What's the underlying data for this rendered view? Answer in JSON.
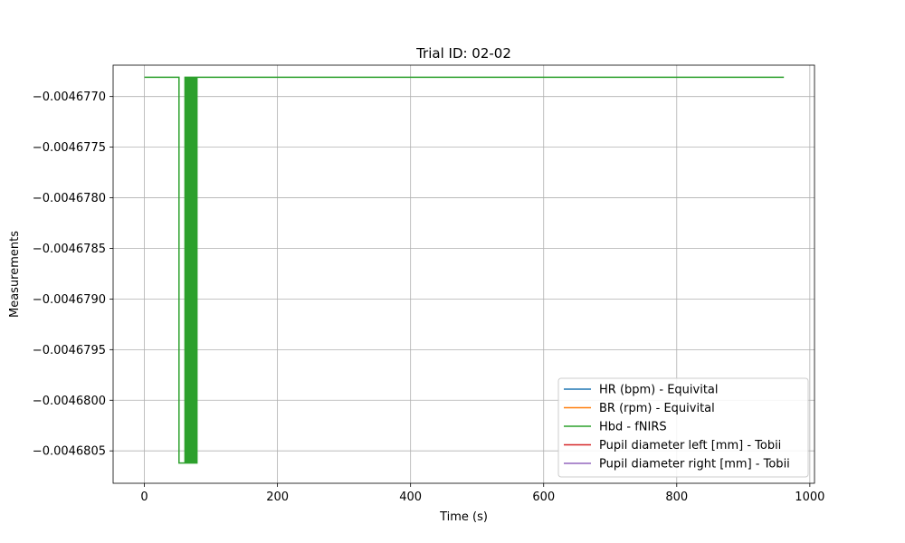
{
  "chart_data": {
    "type": "line",
    "title": "Trial ID: 02-02",
    "xlabel": "Time (s)",
    "ylabel": "Measurements",
    "xlim": [
      -47,
      1007
    ],
    "ylim": [
      -0.00468082,
      -0.00467669
    ],
    "x_ticks": [
      0,
      200,
      400,
      600,
      800,
      1000
    ],
    "x_tick_labels": [
      "0",
      "200",
      "400",
      "600",
      "800",
      "1000"
    ],
    "y_ticks": [
      -0.004677,
      -0.0046775,
      -0.004678,
      -0.0046785,
      -0.004679,
      -0.0046795,
      -0.00468,
      -0.0046805
    ],
    "y_tick_labels": [
      "−0.0046770",
      "−0.0046775",
      "−0.0046780",
      "−0.0046785",
      "−0.0046790",
      "−0.0046795",
      "−0.0046800",
      "−0.0046805"
    ],
    "grid": true,
    "legend_position": "lower right",
    "series": [
      {
        "name": "HR (bpm) - Equivital",
        "color": "#1f77b4",
        "x": [],
        "y": []
      },
      {
        "name": "BR (rpm) - Equivital",
        "color": "#ff7f0e",
        "x": [],
        "y": []
      },
      {
        "name": "Hbd - fNIRS",
        "color": "#2ca02c",
        "x": [
          0,
          52,
          52,
          61,
          61,
          62,
          62,
          63,
          63,
          64,
          64,
          65,
          65,
          66,
          66,
          67,
          67,
          68,
          68,
          69,
          69,
          70,
          70,
          71,
          71,
          72,
          72,
          73,
          73,
          74,
          74,
          75,
          75,
          76,
          76,
          77,
          77,
          78,
          78,
          79,
          79,
          961
        ],
        "y": [
          -0.00467681,
          -0.00467681,
          -0.00468062,
          -0.00468062,
          -0.00467681,
          -0.00467681,
          -0.00468062,
          -0.00468062,
          -0.00467681,
          -0.00467681,
          -0.00468062,
          -0.00468062,
          -0.00467681,
          -0.00467681,
          -0.00468062,
          -0.00468062,
          -0.00467681,
          -0.00467681,
          -0.00468062,
          -0.00468062,
          -0.00467681,
          -0.00467681,
          -0.00468062,
          -0.00468062,
          -0.00467681,
          -0.00467681,
          -0.00468062,
          -0.00468062,
          -0.00467681,
          -0.00467681,
          -0.00468062,
          -0.00468062,
          -0.00467681,
          -0.00467681,
          -0.00468062,
          -0.00468062,
          -0.00467681,
          -0.00467681,
          -0.00468062,
          -0.00468062,
          -0.00467681,
          -0.00467681
        ]
      },
      {
        "name": "Pupil diameter left [mm] - Tobii",
        "color": "#d62728",
        "x": [],
        "y": []
      },
      {
        "name": "Pupil diameter right [mm] - Tobii",
        "color": "#9467bd",
        "x": [],
        "y": []
      }
    ]
  }
}
